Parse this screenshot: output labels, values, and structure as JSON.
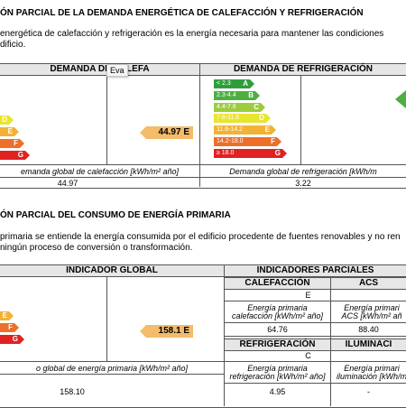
{
  "section1": {
    "title": "ÓN PARCIAL DE LA DEMANDA ENERGÉTICA DE CALEFACCIÓN Y REFRIGERACIÓN",
    "line1": "energética de calefacción y refrigeración es la energía necesaria para mantener las condiciones",
    "line2": "dificio."
  },
  "heating": {
    "header": "DEMANDA DE CALEFA",
    "tooltip": "Eva",
    "tag": "44.97 E",
    "caption": "emanda global de calefacción [kWh/m² año]",
    "value": "44.97",
    "letters": [
      "D",
      "E",
      "F",
      "G"
    ]
  },
  "cooling": {
    "header": "DEMANDA DE REFRIGERACIÓN",
    "caption": "Demanda global de refrigeración [kWh/m",
    "value": "3.22",
    "bars": [
      {
        "label": "< 2.3",
        "letter": "A",
        "color": "#2e9e3d"
      },
      {
        "label": "2.3-4.4",
        "letter": "B",
        "color": "#4caf3f"
      },
      {
        "label": "4.4-7.6",
        "letter": "C",
        "color": "#9ccc3c"
      },
      {
        "label": "7.6-11.6",
        "letter": "D",
        "color": "#e8e52e"
      },
      {
        "label": "11.6-14.2",
        "letter": "E",
        "color": "#f3b234"
      },
      {
        "label": "14.2-18.0",
        "letter": "F",
        "color": "#ec6f2a"
      },
      {
        "label": "≥ 18.0",
        "letter": "G",
        "color": "#e02222"
      }
    ]
  },
  "section2": {
    "title": "ÓN PARCIAL DEL CONSUMO DE ENERGÍA PRIMARIA",
    "line1": "primaria se entiende la energía consumida por el edificio procedente de fuentes renovables y no ren",
    "line2": "ningún proceso de conversión o transformación."
  },
  "global": {
    "header": "INDICADOR GLOBAL",
    "tag": "158.1 E",
    "caption": "o global de energía primaria [kWh/m² año]",
    "value": "158.10",
    "letters": [
      "E",
      "F",
      "G"
    ]
  },
  "partial": {
    "header": "INDICADORES PARCIALES",
    "calefaccion": {
      "label": "CALEFACCIÓN",
      "letter": "E",
      "caption1": "Energía primaria",
      "caption2": "calefacción [kWh/m² año]",
      "value": "64.76"
    },
    "acs": {
      "label": "ACS",
      "caption1": "Energía primari",
      "caption2": "ACS [kWh/m² añ",
      "value": "88.40"
    },
    "refrigeracion": {
      "label": "REFRIGERACIÓN",
      "letter": "C",
      "caption1": "Energía primaria",
      "caption2": "refrigeración [kWh/m² año]",
      "value": "4.95"
    },
    "iluminacion": {
      "label": "ILUMINACI",
      "caption1": "Energía primari",
      "caption2": "iluminación [kWh/m",
      "value": "-"
    }
  },
  "colors": {
    "D": "#e8e52e",
    "E": "#f3b234",
    "F": "#ec6f2a",
    "G": "#e02222",
    "A": "#2e9e3d",
    "B": "#4caf3f",
    "C": "#9ccc3c"
  }
}
